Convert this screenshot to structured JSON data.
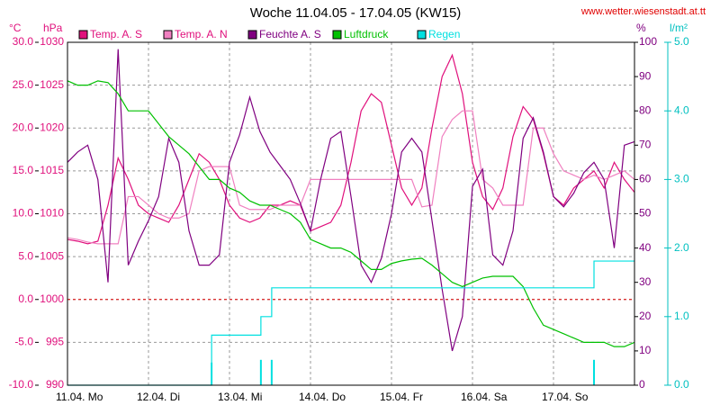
{
  "chart_data": {
    "type": "line",
    "title": "Woche 11.04.05 - 17.04.05 (KW15)",
    "source": "www.wetter.wiesenstadt.at.tt",
    "y_label": "°C",
    "y2_label": "hPa",
    "y3_label": "%",
    "y4_label": "l/m²",
    "xlim": [
      0,
      168
    ],
    "xticks": [
      {
        "value": 0,
        "label": "11.04. Mo"
      },
      {
        "value": 24,
        "label": "12.04. Di"
      },
      {
        "value": 48,
        "label": "13.04. Mi"
      },
      {
        "value": 72,
        "label": "14.04. Do"
      },
      {
        "value": 96,
        "label": "15.04. Fr"
      },
      {
        "value": 120,
        "label": "16.04. Sa"
      },
      {
        "value": 144,
        "label": "17.04. So"
      }
    ],
    "ylim": [
      -10,
      30
    ],
    "yticks": [
      {
        "value": -10,
        "label": "-10.0"
      },
      {
        "value": -5,
        "label": "-5.0"
      },
      {
        "value": 0,
        "label": "0.0"
      },
      {
        "value": 5,
        "label": "5.0"
      },
      {
        "value": 10,
        "label": "10.0"
      },
      {
        "value": 15,
        "label": "15.0"
      },
      {
        "value": 20,
        "label": "20.0"
      },
      {
        "value": 25,
        "label": "25.0"
      },
      {
        "value": 30,
        "label": "30.0"
      }
    ],
    "y2lim": [
      990,
      1030
    ],
    "y2ticks": [
      990,
      995,
      1000,
      1005,
      1010,
      1015,
      1020,
      1025,
      1030
    ],
    "y3lim": [
      0,
      100
    ],
    "y3ticks": [
      0,
      10,
      20,
      30,
      40,
      50,
      60,
      70,
      80,
      90,
      100
    ],
    "y4lim": [
      0,
      5
    ],
    "y4ticks": [
      {
        "value": 0,
        "label": "0.0"
      },
      {
        "value": 1,
        "label": "1.0"
      },
      {
        "value": 2,
        "label": "2.0"
      },
      {
        "value": 3,
        "label": "3.0"
      },
      {
        "value": 4,
        "label": "4.0"
      },
      {
        "value": 5,
        "label": "5.0"
      }
    ],
    "grid": true,
    "x": [
      0,
      3,
      6,
      9,
      12,
      15,
      18,
      21,
      24,
      27,
      30,
      33,
      36,
      39,
      42,
      45,
      48,
      51,
      54,
      57,
      60,
      63,
      66,
      69,
      72,
      75,
      78,
      81,
      84,
      87,
      90,
      93,
      96,
      99,
      102,
      105,
      108,
      111,
      114,
      117,
      120,
      123,
      126,
      129,
      132,
      135,
      138,
      141,
      144,
      147,
      150,
      153,
      156,
      159,
      162,
      165,
      168
    ],
    "series": [
      {
        "name": "Temp. A. S",
        "color": "#e0107c",
        "axis": "y",
        "values": [
          7,
          6.8,
          6.5,
          6.8,
          11,
          16.5,
          14,
          11,
          10,
          9.5,
          9,
          11,
          14,
          17,
          16,
          14,
          11,
          9.5,
          9,
          9.5,
          11,
          11,
          11.5,
          11,
          8,
          8.5,
          9,
          11,
          16,
          22,
          24,
          23,
          18,
          13,
          11,
          13,
          20,
          26,
          28.5,
          24,
          16,
          12,
          10.5,
          13,
          19,
          22.5,
          21,
          17,
          12,
          11,
          13,
          14,
          15,
          13,
          16,
          14,
          12.5
        ]
      },
      {
        "name": "Temp. A. N",
        "color": "#f080c0",
        "axis": "y",
        "values": [
          7.2,
          7,
          6.7,
          6.5,
          6.5,
          6.5,
          12,
          12,
          11,
          10,
          9.5,
          9.5,
          10,
          15,
          15.5,
          15.5,
          15.5,
          11,
          10.5,
          10.5,
          10.5,
          11,
          11,
          11,
          14,
          14,
          14,
          14,
          14,
          14,
          14,
          14,
          14,
          14,
          14,
          10.8,
          11,
          19,
          21,
          22,
          22,
          14,
          13,
          11,
          11,
          11,
          20,
          20,
          17,
          15,
          14.5,
          14,
          14.5,
          14,
          14.5,
          15,
          14
        ]
      },
      {
        "name": "Feuchte A. S",
        "color": "#800080",
        "axis": "y3",
        "values": [
          65,
          68,
          70,
          60,
          30,
          98,
          35,
          42,
          48,
          55,
          72,
          65,
          45,
          35,
          35,
          38,
          65,
          73,
          84,
          74,
          68,
          64,
          60,
          53,
          45,
          60,
          72,
          74,
          55,
          35,
          30,
          37,
          50,
          68,
          72,
          68,
          48,
          28,
          10,
          20,
          58,
          63,
          38,
          35,
          45,
          72,
          78,
          68,
          55,
          52,
          56,
          62,
          65,
          60,
          40,
          70,
          71
        ]
      },
      {
        "name": "Luftdruck",
        "color": "#00c000",
        "axis": "y2",
        "values": [
          1025.5,
          1025,
          1025,
          1025.5,
          1025.3,
          1024,
          1022,
          1022,
          1022,
          1020.5,
          1019,
          1018,
          1017,
          1015.5,
          1014,
          1014,
          1013,
          1012.5,
          1011.5,
          1011,
          1011,
          1010.5,
          1010,
          1009,
          1007,
          1006.5,
          1006,
          1006,
          1005.5,
          1004.5,
          1003.5,
          1003.5,
          1004.2,
          1004.5,
          1004.7,
          1004.8,
          1004,
          1003,
          1002,
          1001.5,
          1002,
          1002.5,
          1002.7,
          1002.7,
          1002.7,
          1001.5,
          999,
          997,
          996.5,
          996,
          995.5,
          995,
          995,
          995,
          994.5,
          994.5,
          995
        ]
      },
      {
        "name": "Regen",
        "color": "#00e0e0",
        "axis": "y4",
        "x": [
          0,
          42.7,
          42.7,
          57.3,
          57.3,
          60.5,
          60.5,
          156,
          156,
          168
        ],
        "values": [
          0,
          0,
          0.73,
          0.73,
          1.0,
          1.0,
          1.42,
          1.42,
          1.81,
          1.81
        ],
        "bar_x": [
          42.7,
          57.3,
          60.5,
          156
        ],
        "bar_values": [
          0.33,
          0.37,
          0.37,
          0.37
        ]
      }
    ]
  }
}
